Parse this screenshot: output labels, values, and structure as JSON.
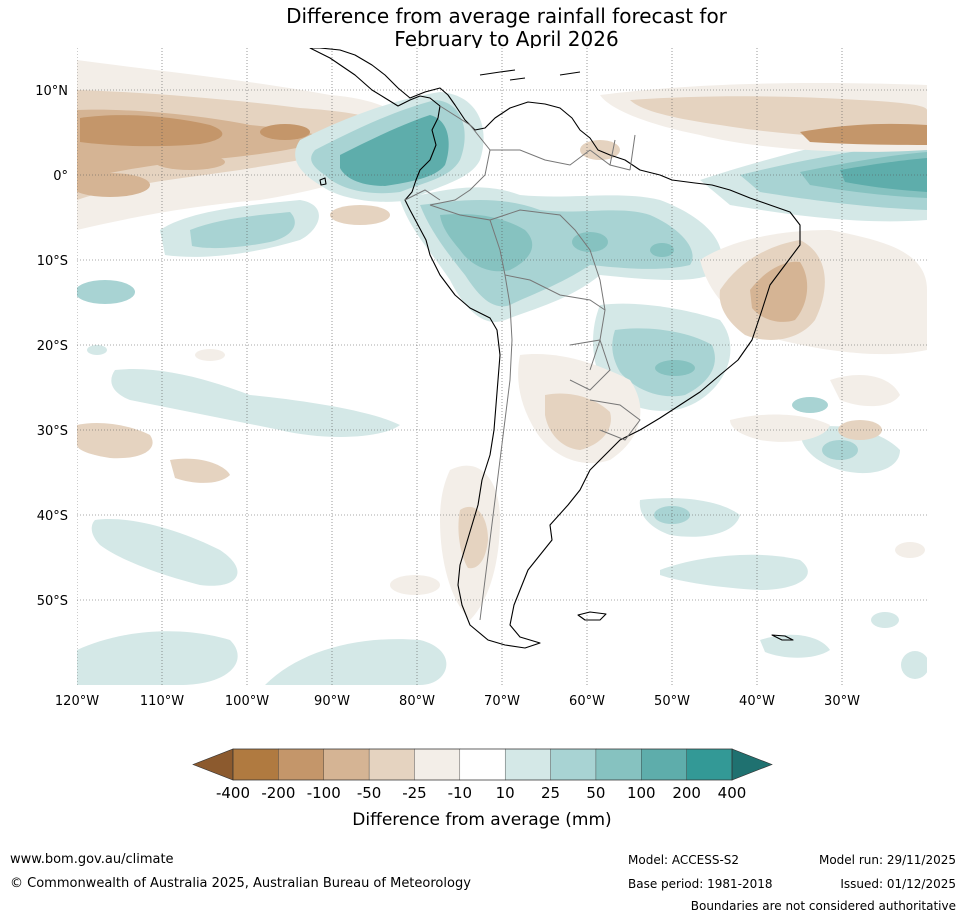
{
  "title": {
    "line1": "Difference from average rainfall forecast for",
    "line2": "February to April 2026"
  },
  "map": {
    "lat_labels": [
      "10°N",
      "0°",
      "10°S",
      "20°S",
      "30°S",
      "40°S",
      "50°S"
    ],
    "lon_labels": [
      "120°W",
      "110°W",
      "100°W",
      "90°W",
      "80°W",
      "70°W",
      "60°W",
      "50°W",
      "40°W",
      "30°W"
    ]
  },
  "legend": {
    "label": "Difference from average (mm)",
    "ticks": [
      "-400",
      "-200",
      "-100",
      "-50",
      "-25",
      "-10",
      "10",
      "25",
      "50",
      "100",
      "200",
      "400"
    ],
    "colors": {
      "under": "#8c5a2e",
      "bins": [
        "#b07a40",
        "#c4966a",
        "#d5b494",
        "#e5d3c0",
        "#f3eee8",
        "#ffffff",
        "#d4e8e7",
        "#a8d3d3",
        "#86c2c0",
        "#5eadab",
        "#339996"
      ],
      "over": "#1f7170"
    }
  },
  "footer": {
    "website": "www.bom.gov.au/climate",
    "copyright": "© Commonwealth of Australia 2025, Australian Bureau of Meteorology",
    "model": "Model: ACCESS-S2",
    "base_period": "Base period: 1981-2018",
    "model_run": "Model run: 29/11/2025",
    "issued": "Issued: 01/12/2025",
    "disclaimer": "Boundaries are not considered authoritative"
  }
}
